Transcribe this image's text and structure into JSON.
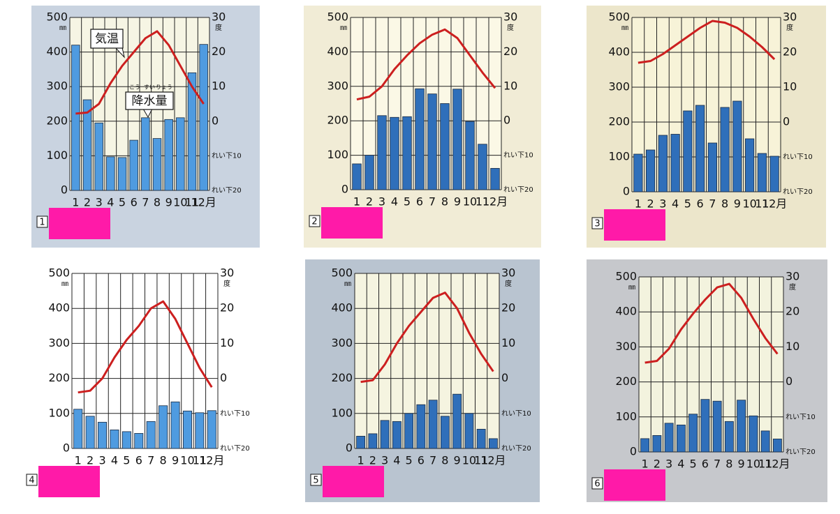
{
  "chart_data": [
    {
      "type": "bar",
      "label": "1",
      "y_unit": "㎜",
      "y2_unit": "度",
      "categories": [
        "1",
        "2",
        "3",
        "4",
        "5",
        "6",
        "7",
        "8",
        "9",
        "10",
        "11",
        "12月"
      ],
      "ylim": [
        0,
        500
      ],
      "yticks": [
        0,
        100,
        200,
        300,
        400,
        500
      ],
      "y2lim": [
        -20,
        30
      ],
      "y2ticks": [
        {
          "value": -20,
          "label": "れい下20"
        },
        {
          "value": -10,
          "label": "れい下10"
        },
        0,
        10,
        20,
        30
      ],
      "grid": true,
      "annotations": [
        {
          "text": "気温"
        },
        {
          "text": "降水量",
          "ruby": [
            "こう",
            "すい",
            "りょう"
          ]
        }
      ],
      "series": [
        {
          "type": "bar",
          "color": "#4f9be0",
          "values": [
            420,
            262,
            195,
            97,
            95,
            145,
            210,
            150,
            205,
            210,
            340,
            422
          ]
        },
        {
          "type": "line",
          "axis": "y2",
          "color": "#cc1f1f",
          "values": [
            2.2,
            2.5,
            5,
            11,
            16,
            20,
            24,
            26,
            22,
            16,
            10,
            5
          ]
        }
      ]
    },
    {
      "type": "bar",
      "label": "2",
      "y_unit": "㎜",
      "y2_unit": "度",
      "categories": [
        "1",
        "2",
        "3",
        "4",
        "5",
        "6",
        "7",
        "8",
        "9",
        "10",
        "11",
        "12月"
      ],
      "ylim": [
        0,
        500
      ],
      "yticks": [
        0,
        100,
        200,
        300,
        400,
        500
      ],
      "y2lim": [
        -20,
        30
      ],
      "y2ticks": [
        {
          "value": -20,
          "label": "れい下20"
        },
        {
          "value": -10,
          "label": "れい下10"
        },
        0,
        10,
        20,
        30
      ],
      "grid": true,
      "series": [
        {
          "type": "bar",
          "color": "#2f6fba",
          "values": [
            75,
            100,
            215,
            210,
            212,
            293,
            278,
            250,
            292,
            198,
            132,
            62
          ]
        },
        {
          "type": "line",
          "axis": "y2",
          "color": "#cc1f1f",
          "values": [
            6.2,
            7,
            10,
            15,
            19,
            22.5,
            25,
            26.5,
            24,
            19,
            14,
            9.5
          ]
        }
      ]
    },
    {
      "type": "bar",
      "label": "3",
      "y_unit": "㎜",
      "y2_unit": "度",
      "categories": [
        "1",
        "2",
        "3",
        "4",
        "5",
        "6",
        "7",
        "8",
        "9",
        "10",
        "11",
        "12月"
      ],
      "ylim": [
        0,
        500
      ],
      "yticks": [
        0,
        100,
        200,
        300,
        400,
        500
      ],
      "y2lim": [
        -20,
        30
      ],
      "y2ticks": [
        {
          "value": -20,
          "label": "れい下20"
        },
        {
          "value": -10,
          "label": "れい下10"
        },
        0,
        10,
        20,
        30
      ],
      "grid": true,
      "series": [
        {
          "type": "bar",
          "color": "#2f6fba",
          "values": [
            108,
            120,
            162,
            165,
            232,
            248,
            140,
            242,
            260,
            152,
            110,
            102
          ]
        },
        {
          "type": "line",
          "axis": "y2",
          "color": "#cc1f1f",
          "values": [
            17,
            17.5,
            19.5,
            22,
            24.5,
            27,
            29,
            28.5,
            27,
            24.5,
            21.5,
            18
          ]
        }
      ]
    },
    {
      "type": "bar",
      "label": "4",
      "y_unit": "㎜",
      "y2_unit": "度",
      "categories": [
        "1",
        "2",
        "3",
        "4",
        "5",
        "6",
        "7",
        "8",
        "9",
        "10",
        "11",
        "12月"
      ],
      "ylim": [
        0,
        500
      ],
      "yticks": [
        0,
        100,
        200,
        300,
        400,
        500
      ],
      "y2lim": [
        -20,
        30
      ],
      "y2ticks": [
        {
          "value": -20,
          "label": "れい下20"
        },
        {
          "value": -10,
          "label": "れい下10"
        },
        0,
        10,
        20,
        30
      ],
      "grid": true,
      "series": [
        {
          "type": "bar",
          "color": "#4f9be0",
          "values": [
            112,
            92,
            75,
            53,
            48,
            43,
            77,
            122,
            133,
            107,
            102,
            108
          ]
        },
        {
          "type": "line",
          "axis": "y2",
          "color": "#cc1f1f",
          "values": [
            -4,
            -3.5,
            0,
            6,
            11,
            15,
            20,
            22,
            17,
            10,
            3,
            -2.5
          ]
        }
      ]
    },
    {
      "type": "bar",
      "label": "5",
      "y_unit": "㎜",
      "y2_unit": "度",
      "categories": [
        "1",
        "2",
        "3",
        "4",
        "5",
        "6",
        "7",
        "8",
        "9",
        "10",
        "11",
        "12月"
      ],
      "ylim": [
        0,
        500
      ],
      "yticks": [
        0,
        100,
        200,
        300,
        400,
        500
      ],
      "y2lim": [
        -20,
        30
      ],
      "y2ticks": [
        {
          "value": -20,
          "label": "れい下20"
        },
        {
          "value": -10,
          "label": "れい下10"
        },
        0,
        10,
        20,
        30
      ],
      "grid": true,
      "series": [
        {
          "type": "bar",
          "color": "#2f6fba",
          "values": [
            35,
            42,
            80,
            77,
            100,
            125,
            138,
            92,
            155,
            100,
            55,
            28
          ]
        },
        {
          "type": "line",
          "axis": "y2",
          "color": "#cc1f1f",
          "values": [
            -1,
            -0.5,
            4,
            10,
            15,
            19,
            23,
            24.5,
            20,
            13,
            7,
            2
          ]
        }
      ]
    },
    {
      "type": "bar",
      "label": "6",
      "y_unit": "㎜",
      "y2_unit": "度",
      "categories": [
        "1",
        "2",
        "3",
        "4",
        "5",
        "6",
        "7",
        "8",
        "9",
        "10",
        "11",
        "12月"
      ],
      "ylim": [
        0,
        500
      ],
      "yticks": [
        0,
        100,
        200,
        300,
        400,
        500
      ],
      "y2lim": [
        -20,
        30
      ],
      "y2ticks": [
        {
          "value": -20,
          "label": "れい下20"
        },
        {
          "value": -10,
          "label": "れい下10"
        },
        0,
        10,
        20,
        30
      ],
      "grid": true,
      "series": [
        {
          "type": "bar",
          "color": "#2f6fba",
          "values": [
            38,
            47,
            82,
            77,
            108,
            150,
            145,
            87,
            148,
            103,
            60,
            37
          ]
        },
        {
          "type": "line",
          "axis": "y2",
          "color": "#cc1f1f",
          "values": [
            5.5,
            6,
            9.5,
            15,
            19.5,
            23.5,
            27,
            28,
            24,
            18,
            12.5,
            8
          ]
        }
      ]
    }
  ]
}
